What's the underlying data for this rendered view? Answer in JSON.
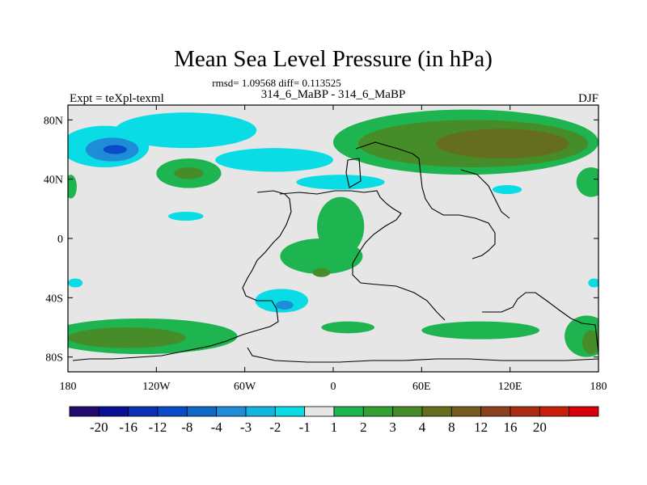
{
  "chart_data": {
    "type": "heatmap",
    "title": "Mean Sea Level Pressure (in hPa)",
    "stats": "rmsd= 1.09568 diff= 0.113525",
    "left_label": "Expt = teXpl-texml",
    "center_label": "314_6_MaBP - 314_6_MaBP",
    "right_label": "DJF",
    "x_ticks": [
      {
        "value": -180,
        "label": "180"
      },
      {
        "value": -120,
        "label": "120W"
      },
      {
        "value": -60,
        "label": "60W"
      },
      {
        "value": 0,
        "label": "0"
      },
      {
        "value": 60,
        "label": "60E"
      },
      {
        "value": 120,
        "label": "120E"
      },
      {
        "value": 180,
        "label": "180"
      }
    ],
    "y_ticks": [
      {
        "value": 80,
        "label": "80N"
      },
      {
        "value": 40,
        "label": "40N"
      },
      {
        "value": 0,
        "label": "0"
      },
      {
        "value": -40,
        "label": "40S"
      },
      {
        "value": -80,
        "label": "80S"
      }
    ],
    "xlim": [
      -180,
      180
    ],
    "ylim": [
      -90,
      90
    ],
    "colorbar": {
      "colors": [
        "#200a6e",
        "#0a0f96",
        "#0a32b4",
        "#0a4bc8",
        "#0f69c8",
        "#1e8cd7",
        "#14b4e1",
        "#0adce6",
        "#e6e6e6",
        "#1eb450",
        "#32a032",
        "#468c28",
        "#646e1e",
        "#785a1e",
        "#8c411e",
        "#aa2d14",
        "#c81e0a",
        "#d7000a"
      ],
      "labels": [
        "-20",
        "-16",
        "-12",
        "-8",
        "-4",
        "-3",
        "-2",
        "-1",
        "1",
        "2",
        "3",
        "4",
        "8",
        "12",
        "16",
        "20"
      ]
    },
    "anomalies": [
      {
        "lon": -155,
        "lat": 62,
        "rlon": 30,
        "rlat": 14,
        "level": -1
      },
      {
        "lon": -150,
        "lat": 60,
        "rlon": 18,
        "rlat": 8,
        "level": -3
      },
      {
        "lon": -148,
        "lat": 60,
        "rlon": 8,
        "rlat": 3,
        "level": -8
      },
      {
        "lon": -100,
        "lat": 73,
        "rlon": 48,
        "rlat": 12,
        "level": -1
      },
      {
        "lon": -40,
        "lat": 53,
        "rlon": 40,
        "rlat": 8,
        "level": -1
      },
      {
        "lon": 5,
        "lat": 38,
        "rlon": 30,
        "rlat": 5,
        "level": -1
      },
      {
        "lon": -100,
        "lat": 15,
        "rlon": 12,
        "rlat": 3,
        "level": -1
      },
      {
        "lon": 118,
        "lat": 33,
        "rlon": 10,
        "rlat": 3,
        "level": -1
      },
      {
        "lon": -175,
        "lat": -30,
        "rlon": 5,
        "rlat": 3,
        "level": -1
      },
      {
        "lon": 177,
        "lat": -30,
        "rlon": 4,
        "rlat": 3,
        "level": -1
      },
      {
        "lon": -35,
        "lat": -42,
        "rlon": 18,
        "rlat": 8,
        "level": -1
      },
      {
        "lon": -33,
        "lat": -45,
        "rlon": 6,
        "rlat": 3,
        "level": -3
      },
      {
        "lon": 90,
        "lat": 65,
        "rlon": 90,
        "rlat": 22,
        "level": 1
      },
      {
        "lon": 95,
        "lat": 64,
        "rlon": 78,
        "rlat": 16,
        "level": 3
      },
      {
        "lon": 115,
        "lat": 64,
        "rlon": 45,
        "rlat": 10,
        "level": 4
      },
      {
        "lon": 175,
        "lat": 38,
        "rlon": 10,
        "rlat": 10,
        "level": 1
      },
      {
        "lon": -98,
        "lat": 44,
        "rlon": 22,
        "rlat": 10,
        "level": 1
      },
      {
        "lon": -98,
        "lat": 44,
        "rlon": 10,
        "rlat": 4,
        "level": 3
      },
      {
        "lon": -178,
        "lat": 35,
        "rlon": 4,
        "rlat": 8,
        "level": 1
      },
      {
        "lon": 5,
        "lat": 8,
        "rlon": 16,
        "rlat": 20,
        "level": 1
      },
      {
        "lon": -8,
        "lat": -12,
        "rlon": 28,
        "rlat": 12,
        "level": 1
      },
      {
        "lon": -8,
        "lat": -23,
        "rlon": 6,
        "rlat": 3,
        "level": 3
      },
      {
        "lon": -130,
        "lat": -66,
        "rlon": 65,
        "rlat": 12,
        "level": 1
      },
      {
        "lon": -140,
        "lat": -67,
        "rlon": 40,
        "rlat": 7,
        "level": 3
      },
      {
        "lon": 10,
        "lat": -60,
        "rlon": 18,
        "rlat": 4,
        "level": 1
      },
      {
        "lon": 100,
        "lat": -62,
        "rlon": 40,
        "rlat": 6,
        "level": 1
      },
      {
        "lon": 172,
        "lat": -66,
        "rlon": 15,
        "rlat": 14,
        "level": 1
      },
      {
        "lon": 175,
        "lat": -70,
        "rlon": 6,
        "rlat": 8,
        "level": 3
      }
    ]
  }
}
